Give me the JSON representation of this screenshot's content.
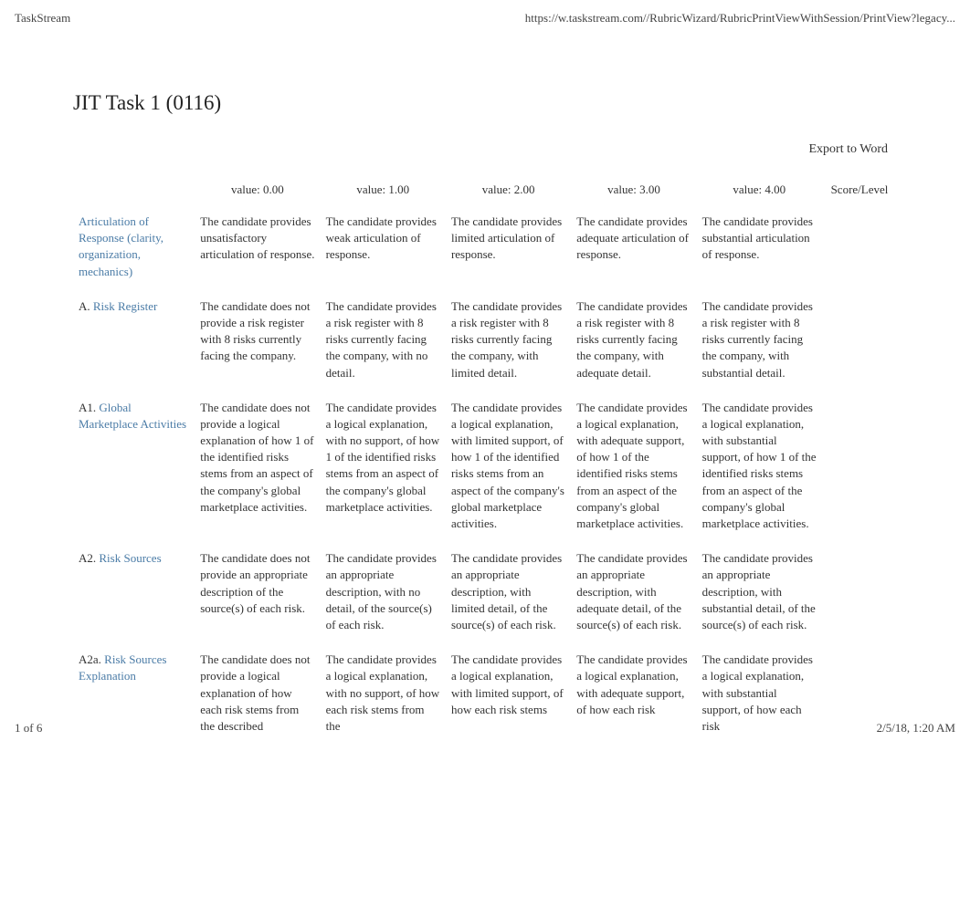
{
  "header": {
    "left": "TaskStream",
    "right": "https://w.taskstream.com//RubricWizard/RubricPrintViewWithSession/PrintView?legacy..."
  },
  "page_title": "JIT Task 1 (0116)",
  "export_link": "Export to Word",
  "columns": {
    "criteria": "",
    "v0": "value: 0.00",
    "v1": "value: 1.00",
    "v2": "value: 2.00",
    "v3": "value: 3.00",
    "v4": "value: 4.00",
    "score": "Score/Level"
  },
  "rows": [
    {
      "prefix": "",
      "link": "Articulation of Response (clarity, organization, mechanics)",
      "v0": "The candidate provides unsatisfactory articulation of response.",
      "v1": "The candidate provides weak articulation of response.",
      "v2": "The candidate provides limited articulation of response.",
      "v3": "The candidate provides adequate articulation of response.",
      "v4": "The candidate provides substantial articulation of response."
    },
    {
      "prefix": "A. ",
      "link": "Risk Register",
      "v0": "The candidate does not provide a risk register with 8 risks currently facing the company.",
      "v1": "The candidate provides a risk register with 8 risks currently facing the company, with no detail.",
      "v2": "The candidate provides a risk register with 8 risks currently facing the company, with limited detail.",
      "v3": "The candidate provides a risk register with 8 risks currently facing the company, with adequate detail.",
      "v4": "The candidate provides a risk register with 8 risks currently facing the company, with substantial detail."
    },
    {
      "prefix": "A1. ",
      "link": "Global Marketplace Activities",
      "v0": "The candidate does not provide a logical explanation of how 1 of the identified risks stems from an aspect of the company's global marketplace activities.",
      "v1": "The candidate provides a logical explanation, with no support, of how 1 of the identified risks stems from an aspect of the company's global marketplace activities.",
      "v2": "The candidate provides a logical explanation, with limited support, of how 1 of the identified risks stems from an aspect of the company's global marketplace activities.",
      "v3": "The candidate provides a logical explanation, with adequate support, of how 1 of the identified risks stems from an aspect of the company's global marketplace activities.",
      "v4": "The candidate provides a logical explanation, with substantial support, of how 1 of the identified risks stems from an aspect of the company's global marketplace activities."
    },
    {
      "prefix": "A2. ",
      "link": "Risk Sources",
      "v0": "The candidate does not provide an appropriate description of the source(s) of  each risk.",
      "v1": "The candidate provides an appropriate description, with no detail, of the source(s) of  each risk.",
      "v2": "The candidate provides an appropriate description, with limited detail, of the source(s) of  each risk.",
      "v3": "The candidate provides an appropriate description, with adequate detail, of the source(s) of  each risk.",
      "v4": "The candidate provides an appropriate description, with substantial detail, of the source(s) of  each risk."
    },
    {
      "prefix": "A2a. ",
      "link": "Risk Sources Explanation",
      "v0": "The candidate does not provide a logical explanation of how each risk stems from the described",
      "v1": "The candidate provides a logical explanation, with no support, of how  each risk stems from the",
      "v2": "The candidate provides a logical explanation, with limited support, of how  each risk stems",
      "v3": "The candidate provides a logical explanation, with adequate support, of how each  risk",
      "v4": "The candidate provides a logical explanation, with substantial support, of how  each risk"
    }
  ],
  "footer": {
    "left": "1 of 6",
    "right": "2/5/18, 1:20 AM"
  }
}
